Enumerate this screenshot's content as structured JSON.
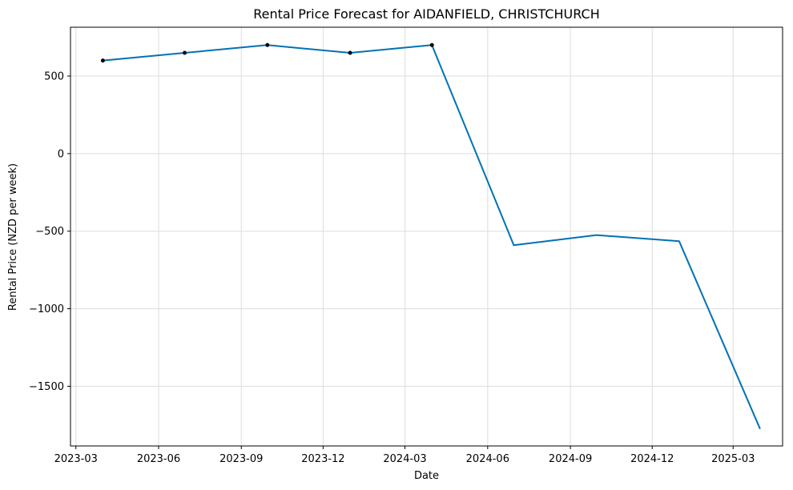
{
  "chart_data": {
    "type": "line",
    "title": "Rental Price Forecast for AIDANFIELD, CHRISTCHURCH",
    "xlabel": "Date",
    "ylabel": "Rental Price (NZD per week)",
    "x_ticks": [
      "2023-03-01",
      "2023-06-01",
      "2023-09-01",
      "2023-12-01",
      "2024-03-01",
      "2024-06-01",
      "2024-09-01",
      "2024-12-01",
      "2025-03-01"
    ],
    "x_tick_labels": [
      "2023-03",
      "2023-06",
      "2023-09",
      "2023-12",
      "2024-03",
      "2024-06",
      "2024-09",
      "2024-12",
      "2025-03"
    ],
    "y_ticks": [
      500,
      0,
      -500,
      -1000,
      -1500
    ],
    "y_tick_labels": [
      "500",
      "0",
      "−500",
      "−1000",
      "−1500"
    ],
    "xlim": [
      "2023-02-23",
      "2025-04-25"
    ],
    "ylim": [
      -1885,
      815
    ],
    "grid": true,
    "series": [
      {
        "role": "forecast",
        "color": "#0072B2",
        "x": [
          "2023-03-31",
          "2023-06-30",
          "2023-09-30",
          "2023-12-31",
          "2024-03-31",
          "2024-06-30",
          "2024-09-30",
          "2024-12-31",
          "2025-03-31"
        ],
        "values": [
          600,
          650,
          700,
          650,
          700,
          -590,
          -525,
          -565,
          -1775
        ]
      },
      {
        "role": "observed",
        "color": "#000000",
        "x": [
          "2023-03-31",
          "2023-06-30",
          "2023-09-30",
          "2023-12-31",
          "2024-03-31"
        ],
        "values": [
          600,
          650,
          700,
          650,
          700
        ]
      }
    ]
  }
}
